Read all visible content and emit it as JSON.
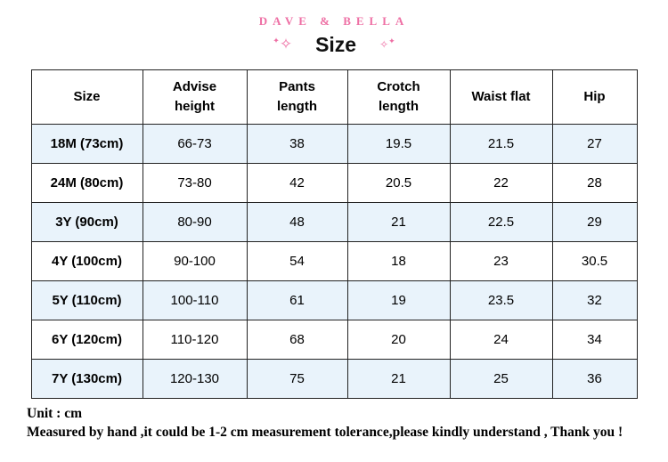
{
  "brand": "DAVE & BELLA",
  "title": "Size",
  "icons": {
    "sparkle_left": "✧",
    "sparkle_left_dot": "✦",
    "sparkle_right": "✧",
    "sparkle_right_dot": "✦"
  },
  "colors": {
    "brand_pink": "#ee6fa4",
    "row_alt_blue": "#e9f3fb",
    "border": "#222222"
  },
  "table": {
    "columns": [
      "Size",
      "Advise height",
      "Pants length",
      "Crotch length",
      "Waist flat",
      "Hip"
    ],
    "rows": [
      [
        "18M (73cm)",
        "66-73",
        "38",
        "19.5",
        "21.5",
        "27"
      ],
      [
        "24M (80cm)",
        "73-80",
        "42",
        "20.5",
        "22",
        "28"
      ],
      [
        "3Y (90cm)",
        "80-90",
        "48",
        "21",
        "22.5",
        "29"
      ],
      [
        "4Y (100cm)",
        "90-100",
        "54",
        "18",
        "23",
        "30.5"
      ],
      [
        "5Y (110cm)",
        "100-110",
        "61",
        "19",
        "23.5",
        "32"
      ],
      [
        "6Y (120cm)",
        "110-120",
        "68",
        "20",
        "24",
        "34"
      ],
      [
        "7Y (130cm)",
        "120-130",
        "75",
        "21",
        "25",
        "36"
      ]
    ]
  },
  "footer": {
    "unit": "Unit : cm",
    "note": "Measured by hand ,it could be 1-2 cm measurement tolerance,please kindly understand , Thank you !"
  }
}
